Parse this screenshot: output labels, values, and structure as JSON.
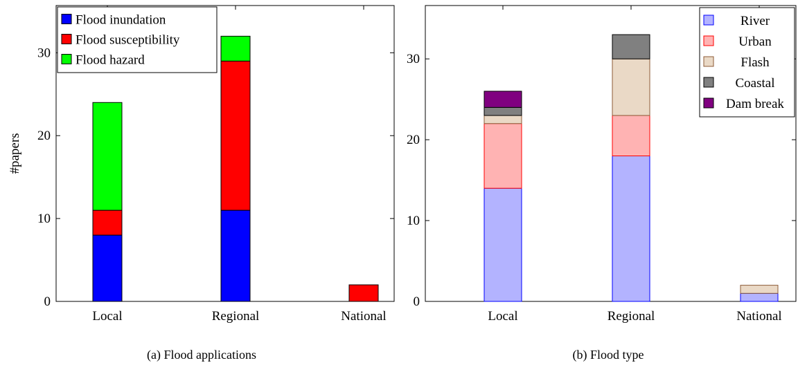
{
  "chart_data": [
    {
      "type": "bar",
      "stacked": true,
      "caption": "(a) Flood applications",
      "ylabel": "#papers",
      "categories": [
        "Local",
        "Regional",
        "National"
      ],
      "ylim": [
        0,
        35.7
      ],
      "yticks": [
        0,
        10,
        20,
        30
      ],
      "legend_position": "top-left",
      "series": [
        {
          "name": "Flood inundation",
          "values": [
            8,
            11,
            0
          ],
          "color": "#0000ff",
          "stroke": "#000000"
        },
        {
          "name": "Flood susceptibility",
          "values": [
            3,
            18,
            2
          ],
          "color": "#ff0000",
          "stroke": "#000000"
        },
        {
          "name": "Flood hazard",
          "values": [
            13,
            3,
            0
          ],
          "color": "#00ff00",
          "stroke": "#000000"
        }
      ]
    },
    {
      "type": "bar",
      "stacked": true,
      "caption": "(b) Flood type",
      "ylabel": "",
      "categories": [
        "Local",
        "Regional",
        "National"
      ],
      "ylim": [
        0,
        36.6
      ],
      "yticks": [
        0,
        10,
        20,
        30
      ],
      "legend_position": "top-right",
      "series": [
        {
          "name": "River",
          "values": [
            14,
            18,
            1
          ],
          "color": "#b3b3ff",
          "stroke": "#0000ff"
        },
        {
          "name": "Urban",
          "values": [
            8,
            5,
            0
          ],
          "color": "#ffb3b3",
          "stroke": "#ff0000"
        },
        {
          "name": "Flash",
          "values": [
            1,
            7,
            1
          ],
          "color": "#ead9c6",
          "stroke": "#8c5a36"
        },
        {
          "name": "Coastal",
          "values": [
            1,
            3,
            0
          ],
          "color": "#808080",
          "stroke": "#000000"
        },
        {
          "name": "Dam break",
          "values": [
            2,
            0,
            0
          ],
          "color": "#800080",
          "stroke": "#000000"
        }
      ]
    }
  ]
}
